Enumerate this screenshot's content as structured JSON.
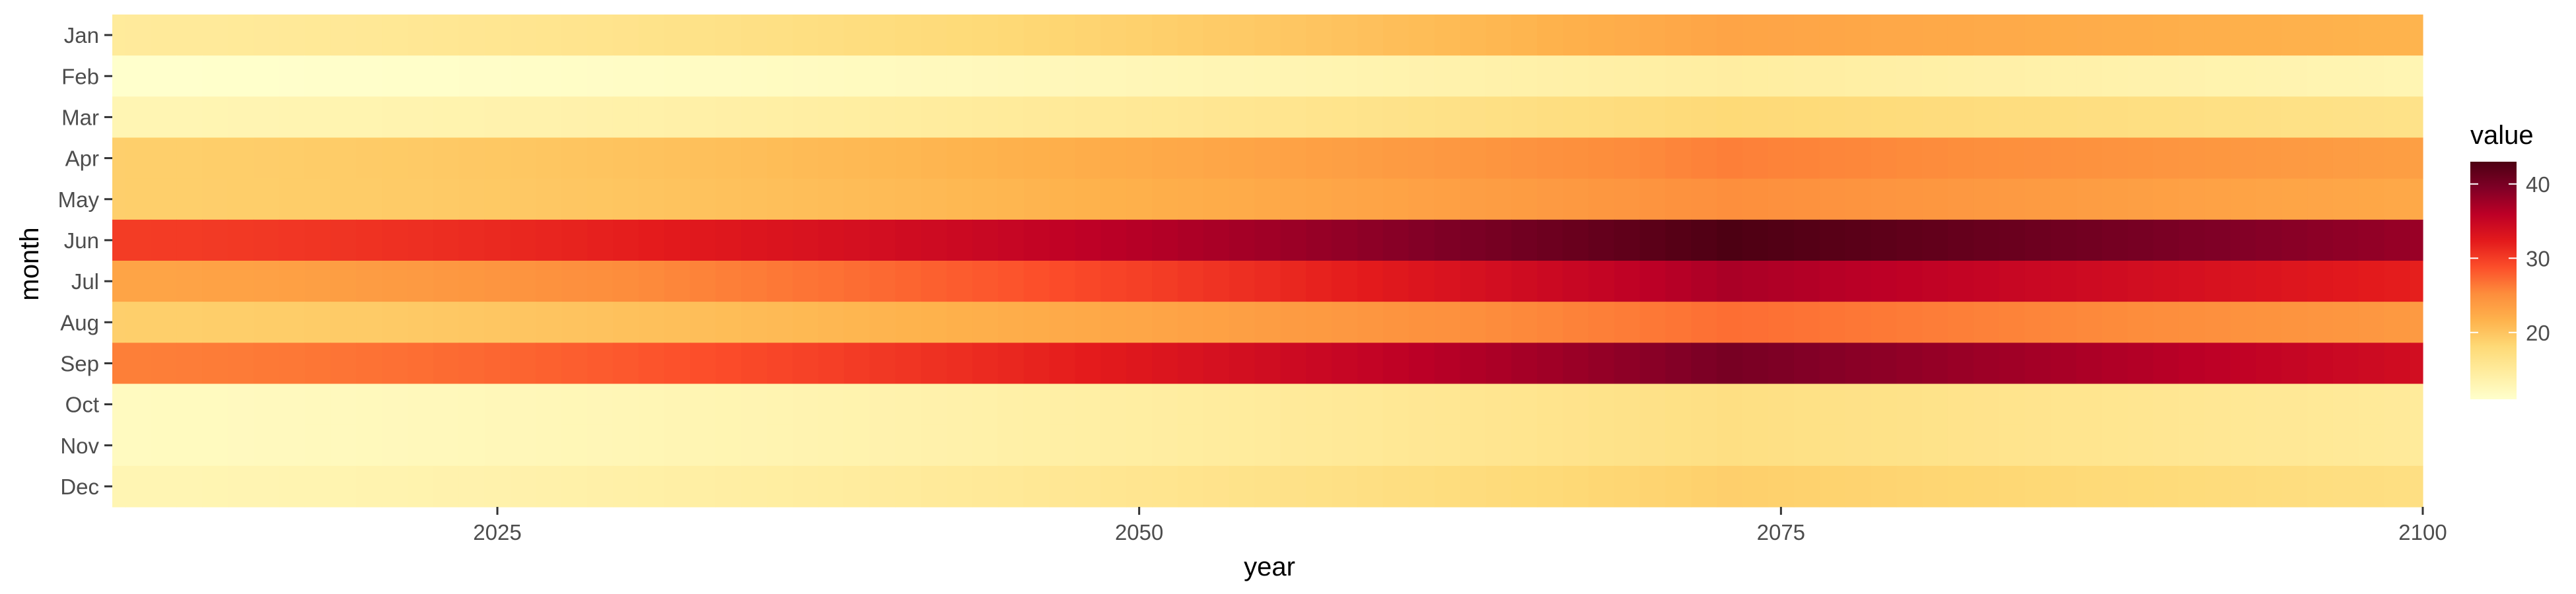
{
  "chart_data": {
    "type": "heatmap",
    "title": "",
    "xlabel": "year",
    "ylabel": "month",
    "x_range": [
      2010,
      2100
    ],
    "x_ticks": [
      2025,
      2050,
      2075,
      2100
    ],
    "x_tick_labels": [
      "2025",
      "2050",
      "2075",
      "2100"
    ],
    "months": [
      "Jan",
      "Feb",
      "Mar",
      "Apr",
      "May",
      "Jun",
      "Jul",
      "Aug",
      "Sep",
      "Oct",
      "Nov",
      "Dec"
    ],
    "legend": {
      "title": "value",
      "placement": "right",
      "range": [
        11,
        43
      ],
      "ticks": [
        20,
        30,
        40
      ],
      "tick_labels": [
        "20",
        "30",
        "40"
      ],
      "colors": [
        "#ffffcc",
        "#ffeda0",
        "#fed976",
        "#feb24c",
        "#fd8d3c",
        "#fc4e2a",
        "#e31a1c",
        "#bd0026",
        "#800026",
        "#4d0013"
      ]
    },
    "series": [
      {
        "month": "Jan",
        "start": 15,
        "peak": 23,
        "end": 21.5
      },
      {
        "month": "Feb",
        "start": 11,
        "peak": 14.5,
        "end": 13
      },
      {
        "month": "Mar",
        "start": 13,
        "peak": 18,
        "end": 16.5
      },
      {
        "month": "Apr",
        "start": 19,
        "peak": 26,
        "end": 23.5
      },
      {
        "month": "May",
        "start": 19,
        "peak": 25,
        "end": 22.5
      },
      {
        "month": "Jun",
        "start": 30,
        "peak": 43,
        "end": 38
      },
      {
        "month": "Jul",
        "start": 23,
        "peak": 37,
        "end": 32
      },
      {
        "month": "Aug",
        "start": 19,
        "peak": 27,
        "end": 24
      },
      {
        "month": "Sep",
        "start": 26,
        "peak": 40,
        "end": 34
      },
      {
        "month": "Oct",
        "start": 12,
        "peak": 17,
        "end": 15
      },
      {
        "month": "Nov",
        "start": 12,
        "peak": 17,
        "end": 15
      },
      {
        "month": "Dec",
        "start": 13,
        "peak": 19,
        "end": 17
      }
    ],
    "peak_year": 2073
  }
}
